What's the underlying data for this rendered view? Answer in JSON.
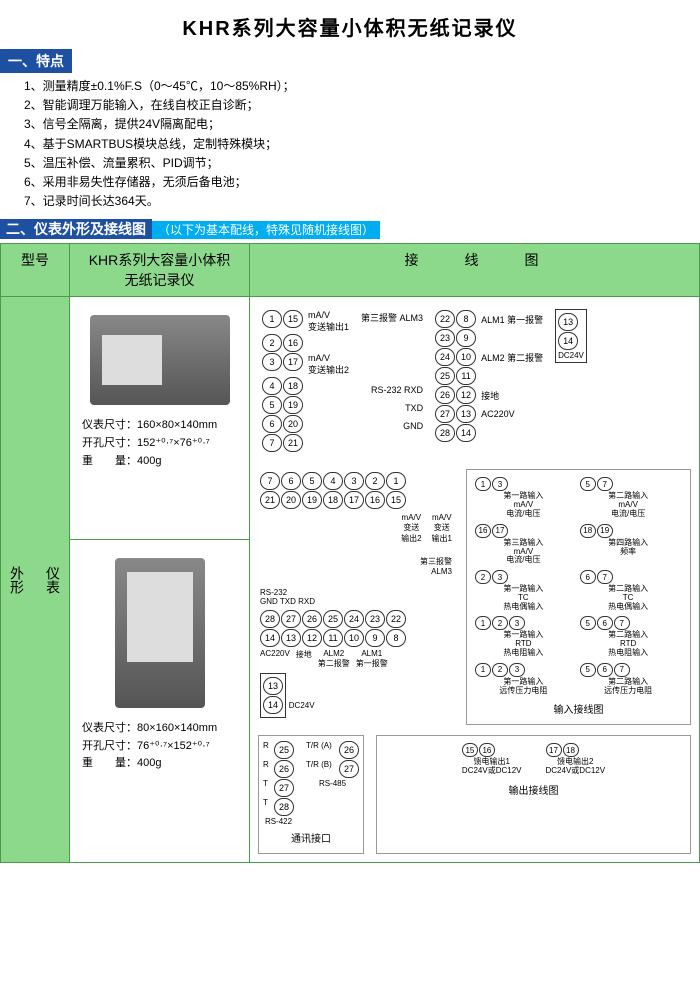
{
  "title": "KHR系列大容量小体积无纸记录仪",
  "section1": {
    "header": "一、特点"
  },
  "features": [
    "1、测量精度±0.1%F.S（0～45℃，10～85%RH）；",
    "2、智能调理万能输入，在线自校正自诊断；",
    "3、信号全隔离，提供24V隔离配电；",
    "4、基于SMARTBUS模块总线，定制特殊模块；",
    "5、温压补偿、流量累积、PID调节；",
    "6、采用非易失性存储器，无须后备电池；",
    "7、记录时间长达364天。"
  ],
  "section2": {
    "header_dark": "二、仪表外形及接线图",
    "header_cyan": "（以下为基本配线，特殊见随机接线图）"
  },
  "tbl": {
    "h1": "型号",
    "h2": "KHR系列大容量小体积\n无纸记录仪",
    "h3": "接　　线　　图",
    "row_label": "仪表\n\n外形"
  },
  "spec1": {
    "l1": "仪表尺寸：160×80×140mm",
    "l2": "开孔尺寸：152⁺⁰·⁷×76⁺⁰·⁷",
    "l3": "重　　量：400g"
  },
  "spec2": {
    "l1": "仪表尺寸：80×160×140mm",
    "l2": "开孔尺寸：76⁺⁰·⁷×152⁺⁰·⁷",
    "l3": "重　　量：400g"
  },
  "wiring1": {
    "left_terms": [
      [
        "1",
        "15"
      ],
      [
        "2",
        "16"
      ],
      [
        "3",
        "17"
      ],
      [
        "4",
        "18"
      ],
      [
        "5",
        "19"
      ],
      [
        "6",
        "20"
      ],
      [
        "7",
        "21"
      ]
    ],
    "notes_left": [
      "mA/V\n变送输出1",
      "",
      "mA/V\n变送输出2",
      "",
      "",
      "",
      ""
    ],
    "labels_mid": [
      "第三报警",
      "",
      "",
      "",
      "RS-232",
      ""
    ],
    "sig_mid": [
      "ALM3",
      "",
      "",
      "",
      "RXD",
      "TXD",
      "GND"
    ],
    "right_terms": [
      [
        "22",
        "8"
      ],
      [
        "23",
        "9"
      ],
      [
        "24",
        "10"
      ],
      [
        "25",
        "11"
      ],
      [
        "26",
        "12"
      ],
      [
        "27",
        "13"
      ],
      [
        "28",
        "14"
      ]
    ],
    "labels_right": [
      "ALM1 第一报警",
      "",
      "ALM2 第二报警",
      "",
      "接地",
      "AC220V",
      ""
    ],
    "dc_box": [
      "13",
      "14",
      "DC24V"
    ]
  },
  "wiring2": {
    "top_row": [
      "7",
      "6",
      "5",
      "4",
      "3",
      "2",
      "1"
    ],
    "mid_row": [
      "21",
      "20",
      "19",
      "18",
      "17",
      "16",
      "15"
    ],
    "out_labels": [
      "mA/V\n变送\n输出2",
      "mA/V\n变送\n输出1"
    ],
    "alm3": "第三报警\nALM3",
    "rs232": "RS-232\nGND TXD RXD",
    "bot_row1": [
      "28",
      "27",
      "26",
      "25",
      "24",
      "23",
      "22"
    ],
    "bot_row2": [
      "14",
      "13",
      "12",
      "11",
      "10",
      "9",
      "8"
    ],
    "bot_labels": [
      "AC220V",
      "接地",
      "ALM2\n第二报警",
      "ALM1\n第一报警"
    ],
    "dc": [
      "13",
      "14",
      "DC24V"
    ]
  },
  "input_wiring": {
    "title": "输入接线图",
    "pairs": [
      {
        "t": [
          "1",
          "3"
        ],
        "l": "第一路输入\nmA/V\n电流/电压"
      },
      {
        "t": [
          "5",
          "7"
        ],
        "l": "第二路输入\nmA/V\n电流/电压"
      },
      {
        "t": [
          "16",
          "17"
        ],
        "l": "第三路输入\nmA/V\n电流/电压"
      },
      {
        "t": [
          "18",
          "19"
        ],
        "l": "第四路输入\n频率"
      },
      {
        "t": [
          "2",
          "3"
        ],
        "l": "第一路输入\nTC\n热电偶输入"
      },
      {
        "t": [
          "6",
          "7"
        ],
        "l": "第二路输入\nTC\n热电偶输入"
      },
      {
        "t": [
          "1",
          "2",
          "3"
        ],
        "l": "第一路输入\nRTD\n热电阻输入"
      },
      {
        "t": [
          "5",
          "6",
          "7"
        ],
        "l": "第二路输入\nRTD\n热电阻输入"
      },
      {
        "t": [
          "1",
          "2",
          "3"
        ],
        "l": "第一路输入\n远传压力电阻"
      },
      {
        "t": [
          "5",
          "6",
          "7"
        ],
        "l": "第二路输入\n远传压力电阻"
      }
    ]
  },
  "comm": {
    "title": "通讯接口",
    "rs422": {
      "label": "RS-422",
      "rows": [
        [
          "R",
          "25"
        ],
        [
          "R",
          "26"
        ],
        [
          "T",
          "27"
        ],
        [
          "T",
          "28"
        ]
      ]
    },
    "rs485": {
      "label": "RS-485",
      "rows": [
        [
          "T/R (A)",
          "26"
        ],
        [
          "T/R (B)",
          "27"
        ]
      ]
    }
  },
  "output_wiring": {
    "title": "输出接线图",
    "pairs": [
      {
        "t": [
          "15",
          "16"
        ],
        "l": "馈电输出1\nDC24V或DC12V"
      },
      {
        "t": [
          "17",
          "18"
        ],
        "l": "馈电输出2\nDC24V或DC12V"
      }
    ]
  }
}
